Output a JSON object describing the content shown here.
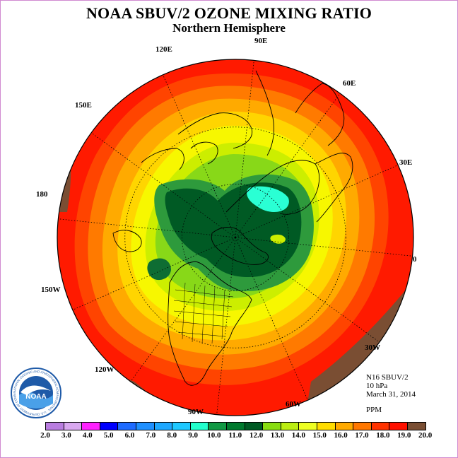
{
  "title": "NOAA SBUV/2 OZONE MIXING RATIO",
  "subtitle": "Northern Hemisphere",
  "longitude_labels": [
    "90E",
    "60E",
    "30E",
    "0",
    "30W",
    "60W",
    "90W",
    "120W",
    "150W",
    "180",
    "150E",
    "120E"
  ],
  "info": {
    "instrument": "N16 SBUV/2",
    "level": "10 hPa",
    "date": "March 31, 2014"
  },
  "units": "PPM",
  "colorbar": {
    "labels": [
      "2.0",
      "3.0",
      "4.0",
      "5.0",
      "6.0",
      "7.0",
      "8.0",
      "9.0",
      "10.0",
      "11.0",
      "12.0",
      "13.0",
      "14.0",
      "15.0",
      "16.0",
      "17.0",
      "18.0",
      "19.0",
      "20.0"
    ],
    "colors": [
      "#b97de0",
      "#d9a8f0",
      "#ff22ff",
      "#0000ff",
      "#1e6bff",
      "#1f90ff",
      "#1ea8ff",
      "#1ec8ff",
      "#22ffcc",
      "#119944",
      "#007a2e",
      "#005a24",
      "#88dd11",
      "#bbee11",
      "#eeff22",
      "#ffdd00",
      "#ffaa00",
      "#ff7700",
      "#ff3300",
      "#ff1100",
      "#7a4e33"
    ]
  },
  "logo": {
    "text": "NOAA",
    "ring_text": "NATIONAL OCEANIC AND ATMOSPHERIC ADMINISTRATION · U.S. DEPARTMENT OF COMMERCE"
  },
  "map_colors": {
    "brown": "#7a4e33",
    "red": "#ff1a00",
    "red_orange": "#ff4400",
    "orange": "#ff7a00",
    "amber": "#ffaa00",
    "gold": "#ffd500",
    "yellow": "#f7f700",
    "yellow_green": "#ccee00",
    "light_green": "#88d818",
    "green": "#2e9a3c",
    "dark_green": "#0e6d33",
    "darker_green": "#005a24",
    "cyan": "#2affd4"
  }
}
